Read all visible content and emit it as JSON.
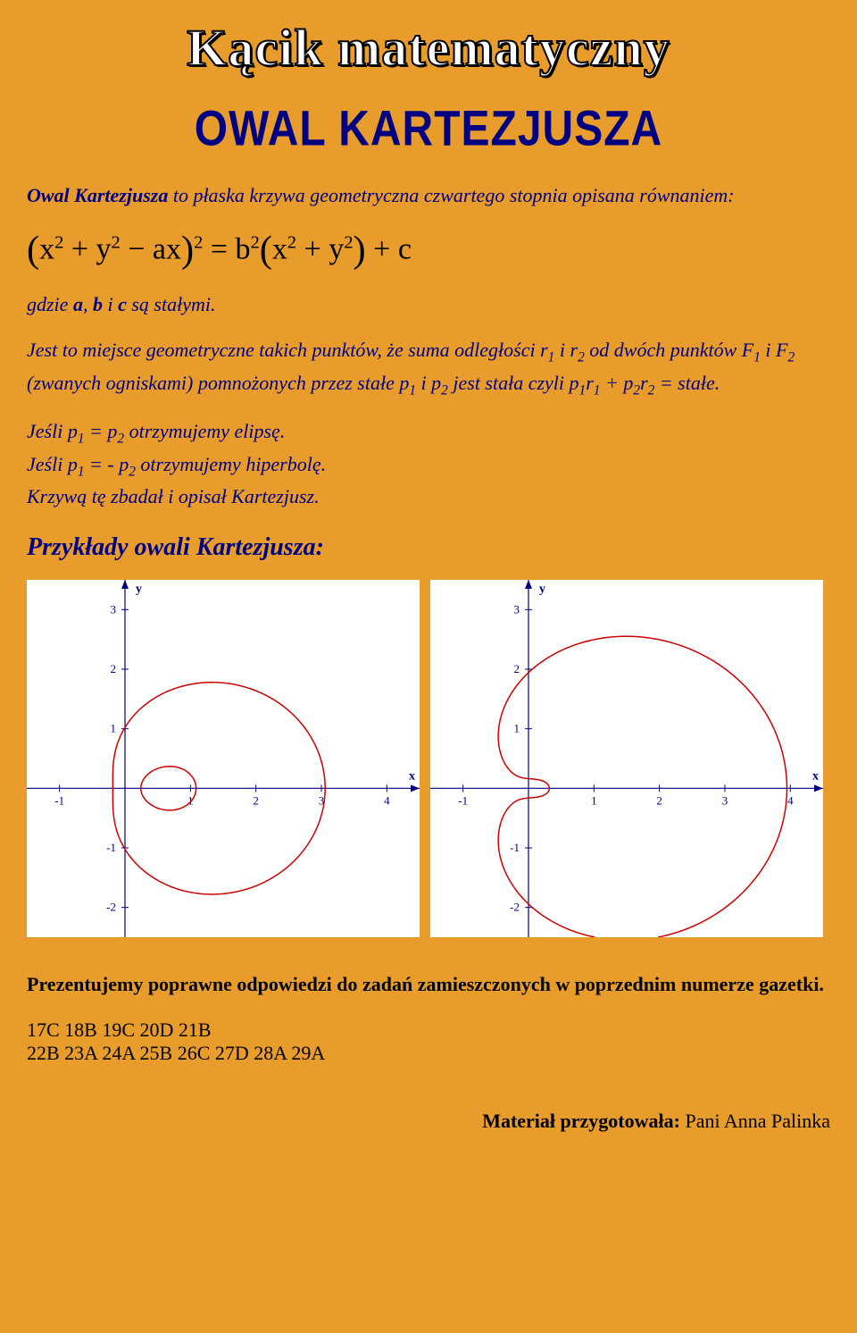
{
  "banner": {
    "text": "Kącik matematyczny"
  },
  "title": "OWAL KARTEZJUSZA",
  "intro": {
    "lead": "Owal Kartezjusza",
    "rest": " to płaska krzywa geometryczna czwartego stopnia opisana równaniem:"
  },
  "formula_html": "<span class='paren'>(</span>x<sup>2</sup> + y<sup>2</sup> − ax<span class='paren'>)</span><sup>2</sup> = b<sup>2</sup><span class='paren'>(</span>x<sup>2</sup> + y<sup>2</sup><span class='paren'>)</span> + c",
  "where": {
    "pre": "gdzie ",
    "a": "a",
    "b": "b",
    "c": "c",
    "post": " są stałymi."
  },
  "para2_html": "Jest to miejsce geometryczne takich punktów, że suma odległości r<sub>1</sub> i r<sub>2</sub> od dwóch punktów F<sub>1</sub> i F<sub>2</sub> (zwanych ogniskami) pomnożonych przez stałe p<sub>1</sub> i p<sub>2</sub> jest stała czyli p<sub>1</sub>r<sub>1</sub> + p<sub>2</sub>r<sub>2</sub> = stałe.",
  "para3_html": "Jeśli p<sub>1</sub> = p<sub>2</sub> otrzymujemy elipsę.<br>Jeśli p<sub>1</sub> = - p<sub>2</sub> otrzymujemy hiperbolę.<br>Krzywą tę zbadał i opisał Kartezjusz.",
  "examples_heading": "Przykłady  owali  Kartezjusza:",
  "chart1": {
    "type": "curve-plot",
    "xlim": [
      -1.5,
      4.5
    ],
    "ylim": [
      -2.5,
      3.5
    ],
    "xticks": [
      -1,
      1,
      2,
      3,
      4
    ],
    "yticks": [
      -2,
      -1,
      1,
      2,
      3
    ],
    "xlabel": "x",
    "ylabel": "y",
    "background": "#ffffff",
    "axis_color": "#000080",
    "tick_color": "#000080",
    "curve_color": "#cc0000",
    "curve_width": 1.5,
    "a": 2.1,
    "b2": 0.9,
    "c": 0.15
  },
  "chart2": {
    "type": "curve-plot",
    "xlim": [
      -1.5,
      4.5
    ],
    "ylim": [
      -2.5,
      3.5
    ],
    "xticks": [
      -1,
      1,
      2,
      3,
      4
    ],
    "yticks": [
      -2,
      -1,
      1,
      2,
      3
    ],
    "xlabel": "x",
    "ylabel": "y",
    "background": "#ffffff",
    "axis_color": "#000080",
    "tick_color": "#000080",
    "curve_color": "#cc0000",
    "curve_width": 1.5,
    "a": 2.0,
    "b2": 3.8,
    "c": -0.1
  },
  "answers_intro": "Prezentujemy poprawne odpowiedzi do zadań zamieszczonych w poprzednim numerze gazetki.",
  "answers_line1": "17C  18B  19C  20D 21B",
  "answers_line2": "22B  23A  24A  25B  26C  27D  28A  29A",
  "footer": {
    "label": "Materiał przygotowała: ",
    "name": "Pani Anna Palinka"
  }
}
